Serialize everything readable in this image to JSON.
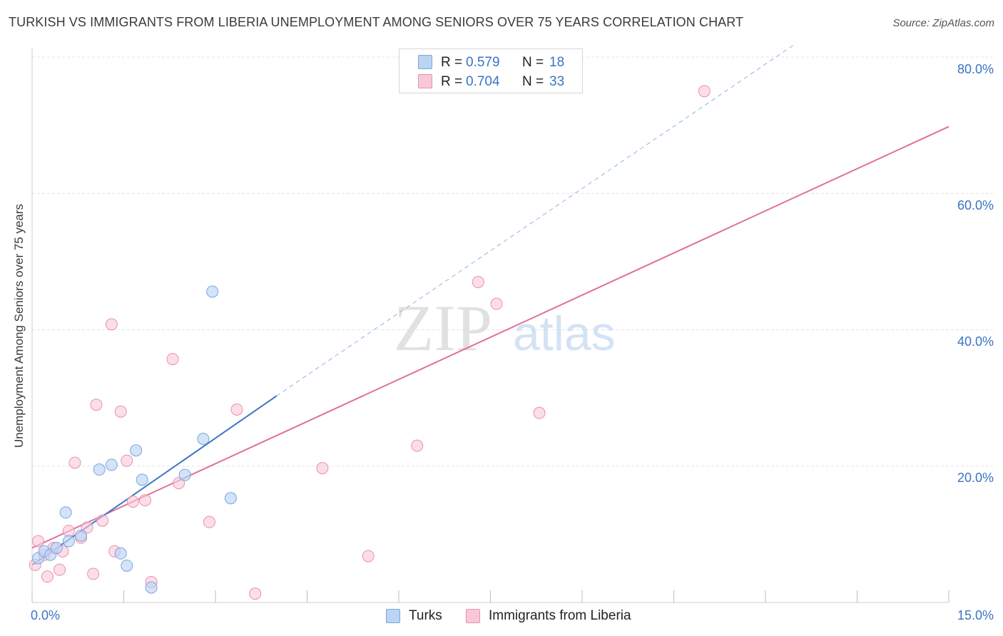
{
  "header": {
    "title": "TURKISH VS IMMIGRANTS FROM LIBERIA UNEMPLOYMENT AMONG SENIORS OVER 75 YEARS CORRELATION CHART",
    "source": "Source: ZipAtlas.com"
  },
  "watermark": {
    "zip": "ZIP",
    "atlas": "atlas"
  },
  "legend": {
    "rows": [
      {
        "r_label": "R = ",
        "r_value": "0.579",
        "n_label": "N = ",
        "n_value": "18"
      },
      {
        "r_label": "R = ",
        "r_value": "0.704",
        "n_label": "N = ",
        "n_value": "33"
      }
    ]
  },
  "colors": {
    "turks_fill": "#bcd4f4",
    "turks_stroke": "#7aa6de",
    "turks_line": "#3a74c4",
    "liberia_fill": "#f8c8d8",
    "liberia_stroke": "#e890ae",
    "liberia_line": "#e0709a",
    "grid": "#e4e4e4",
    "axis_text": "#3a74c4"
  },
  "chart_data": {
    "type": "scatter",
    "title": "TURKISH VS IMMIGRANTS FROM LIBERIA UNEMPLOYMENT AMONG SENIORS OVER 75 YEARS CORRELATION CHART",
    "xlabel": "",
    "ylabel": "Unemployment Among Seniors over 75 years",
    "xlim": [
      0,
      15
    ],
    "ylim": [
      0,
      80
    ],
    "x_tick_labels": [
      "0.0%",
      "15.0%"
    ],
    "y_ticks": [
      20,
      40,
      60,
      80
    ],
    "y_tick_labels": [
      "20.0%",
      "40.0%",
      "60.0%",
      "80.0%"
    ],
    "grid": true,
    "series": [
      {
        "name": "Turks",
        "r": 0.579,
        "n": 18,
        "points": [
          [
            0.1,
            6.5
          ],
          [
            0.2,
            7.5
          ],
          [
            0.3,
            7.0
          ],
          [
            0.4,
            8.0
          ],
          [
            0.55,
            13.2
          ],
          [
            0.6,
            9.0
          ],
          [
            0.8,
            9.8
          ],
          [
            1.1,
            19.5
          ],
          [
            1.3,
            20.2
          ],
          [
            1.45,
            7.2
          ],
          [
            1.55,
            5.4
          ],
          [
            1.7,
            22.3
          ],
          [
            1.8,
            18.0
          ],
          [
            1.95,
            2.2
          ],
          [
            2.5,
            18.7
          ],
          [
            2.8,
            24.0
          ],
          [
            2.95,
            45.6
          ],
          [
            3.25,
            15.3
          ]
        ],
        "trend": {
          "x0": 0.0,
          "y0": 5.5,
          "x1": 4.0,
          "y1": 30.3,
          "dashed_to_x": 12.5,
          "dashed_to_y": 82.0
        }
      },
      {
        "name": "Immigrants from Liberia",
        "r": 0.704,
        "n": 33,
        "points": [
          [
            0.05,
            5.5
          ],
          [
            0.1,
            9.0
          ],
          [
            0.2,
            7.0
          ],
          [
            0.25,
            3.8
          ],
          [
            0.35,
            8.0
          ],
          [
            0.45,
            4.8
          ],
          [
            0.5,
            7.5
          ],
          [
            0.6,
            10.5
          ],
          [
            0.7,
            20.5
          ],
          [
            0.8,
            9.5
          ],
          [
            0.9,
            11.0
          ],
          [
            1.0,
            4.2
          ],
          [
            1.05,
            29.0
          ],
          [
            1.15,
            12.0
          ],
          [
            1.3,
            40.8
          ],
          [
            1.35,
            7.5
          ],
          [
            1.45,
            28.0
          ],
          [
            1.55,
            20.8
          ],
          [
            1.65,
            14.8
          ],
          [
            1.85,
            15.0
          ],
          [
            1.95,
            3.0
          ],
          [
            2.3,
            35.7
          ],
          [
            2.4,
            17.5
          ],
          [
            2.9,
            11.8
          ],
          [
            3.35,
            28.3
          ],
          [
            3.65,
            1.3
          ],
          [
            4.75,
            19.7
          ],
          [
            5.5,
            6.8
          ],
          [
            6.3,
            23.0
          ],
          [
            7.3,
            47.0
          ],
          [
            7.6,
            43.8
          ],
          [
            8.3,
            27.8
          ],
          [
            11.0,
            75.0
          ]
        ],
        "trend": {
          "x0": 0.0,
          "y0": 8.0,
          "x1": 15.0,
          "y1": 69.8
        }
      }
    ]
  }
}
